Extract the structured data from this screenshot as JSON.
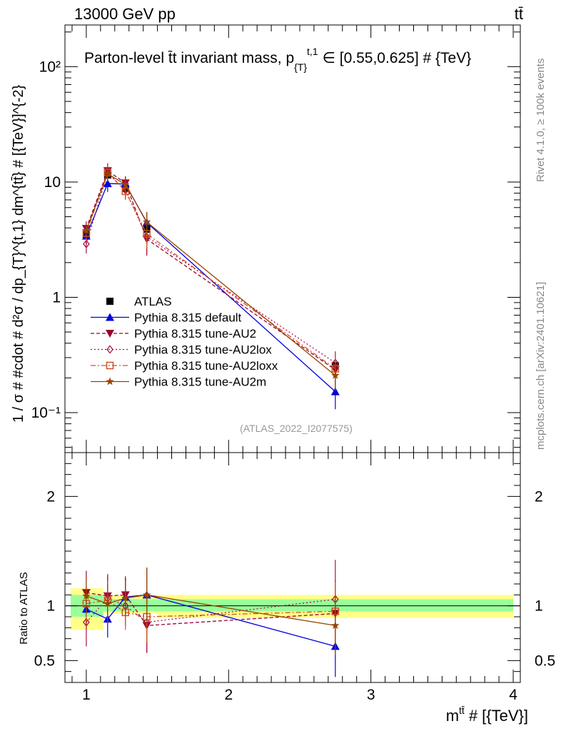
{
  "header": {
    "left": "13000 GeV pp",
    "right": "tt̄"
  },
  "side_labels": {
    "rivet": "Rivet 4.1.0, ≥ 100k events",
    "mcplots": "mcplots.cern.ch [arXiv:2401.10621]"
  },
  "analysis_tag": "(ATLAS_2022_I2077575)",
  "colors": {
    "ATLAS": "#000000",
    "default": "#0000dd",
    "AU2": "#990033",
    "AU2lox": "#aa1144",
    "AU2loxx": "#cc5522",
    "AU2m": "#994400",
    "band_inner": "#99ff99",
    "band_outer": "#ffff88"
  },
  "chart_data": [
    {
      "type": "scatter",
      "title": "Parton-level t̄t invariant mass, p_{T}^{t,1} ∈ [0.55,0.625] # {TeV}",
      "title_main": "Parton-level t̄t invariant mass, p",
      "title_sub": "{T}",
      "title_sup": "t,1",
      "title_tail": "∈ [0.55,0.625] # {TeV}",
      "ylabel": "1 / σ # #cdot # d²σ / dp_{T}^{t,1} dm^{tt̄} # [{TeV}]^{-2}",
      "yscale": "log",
      "xlim": [
        0.85,
        4.05
      ],
      "ylim": [
        0.045,
        230
      ],
      "ytick_labels": [
        "10⁻¹",
        "1",
        "10",
        "10²"
      ],
      "x": [
        1.0,
        1.15,
        1.275,
        1.425,
        2.75
      ],
      "series": [
        {
          "name": "ATLAS",
          "marker": "square",
          "values": [
            3.5,
            11.5,
            8.8,
            3.9,
            0.255
          ],
          "yerr": [
            0.3,
            0.9,
            0.7,
            0.35,
            0.025
          ]
        },
        {
          "name": "Pythia 8.315 default",
          "marker": "triangle-up",
          "values": [
            3.4,
            9.7,
            9.6,
            4.45,
            0.152
          ],
          "yerr": [
            0.5,
            1.5,
            1.4,
            1.0,
            0.045
          ]
        },
        {
          "name": "Pythia 8.315 tune-AU2",
          "marker": "triangle-down",
          "values": [
            3.95,
            12.5,
            9.8,
            3.2,
            0.235
          ],
          "yerr": [
            0.6,
            2.0,
            1.4,
            0.9,
            0.06
          ]
        },
        {
          "name": "Pythia 8.315 tune-AU2lox",
          "marker": "diamond",
          "values": [
            2.9,
            12.0,
            8.5,
            3.35,
            0.27
          ],
          "yerr": [
            0.5,
            1.8,
            1.3,
            0.9,
            0.07
          ]
        },
        {
          "name": "Pythia 8.315 tune-AU2loxx",
          "marker": "open-square",
          "values": [
            3.6,
            12.1,
            8.3,
            3.55,
            0.24
          ],
          "yerr": [
            0.5,
            1.8,
            1.3,
            0.9,
            0.06
          ]
        },
        {
          "name": "Pythia 8.315 tune-AU2m",
          "marker": "star",
          "values": [
            3.8,
            11.8,
            9.5,
            4.5,
            0.21
          ],
          "yerr": [
            0.5,
            1.8,
            1.4,
            1.0,
            0.055
          ]
        }
      ]
    },
    {
      "type": "scatter",
      "ylabel": "Ratio to ATLAS",
      "xlabel": "m^{tt̄} # [{TeV}]",
      "xlabel_main": "m",
      "xlabel_sup": "tt̄",
      "xlabel_tail": "# [{TeV}]",
      "xlim": [
        0.85,
        4.05
      ],
      "ylim": [
        0.3,
        2.4
      ],
      "xtick_labels": [
        "1",
        "2",
        "3",
        "4"
      ],
      "ytick_labels": [
        "0.5",
        "1",
        "2"
      ],
      "x": [
        1.0,
        1.15,
        1.275,
        1.425,
        2.75
      ],
      "bands": {
        "edges": [
          0.89,
          1.12,
          1.22,
          1.35,
          1.5,
          4.0
        ],
        "inner_lo": [
          0.9,
          0.95,
          0.95,
          0.95,
          0.95
        ],
        "inner_hi": [
          1.1,
          1.06,
          1.06,
          1.06,
          1.06
        ],
        "outer_lo": [
          0.78,
          0.93,
          0.93,
          0.93,
          0.89
        ],
        "outer_hi": [
          1.16,
          1.1,
          1.1,
          1.1,
          1.1
        ]
      },
      "series": [
        {
          "name": "Pythia 8.315 default",
          "values": [
            0.97,
            0.88,
            1.08,
            1.1,
            0.63
          ],
          "yerr": [
            0.15,
            0.17,
            0.17,
            0.25,
            0.28
          ]
        },
        {
          "name": "Pythia 8.315 tune-AU2",
          "values": [
            1.12,
            1.09,
            1.1,
            0.82,
            0.93
          ],
          "yerr": [
            0.2,
            0.2,
            0.17,
            0.25,
            0.3
          ]
        },
        {
          "name": "Pythia 8.315 tune-AU2lox",
          "values": [
            0.85,
            1.07,
            1.0,
            0.85,
            1.06
          ],
          "yerr": [
            0.22,
            0.2,
            0.18,
            0.27,
            0.36
          ]
        },
        {
          "name": "Pythia 8.315 tune-AU2loxx",
          "values": [
            1.02,
            1.05,
            0.94,
            0.9,
            0.95
          ],
          "yerr": [
            0.16,
            0.18,
            0.16,
            0.24,
            0.27
          ]
        },
        {
          "name": "Pythia 8.315 tune-AU2m",
          "values": [
            1.09,
            1.02,
            1.07,
            1.1,
            0.82
          ],
          "yerr": [
            0.16,
            0.18,
            0.16,
            0.25,
            0.27
          ]
        }
      ]
    }
  ]
}
